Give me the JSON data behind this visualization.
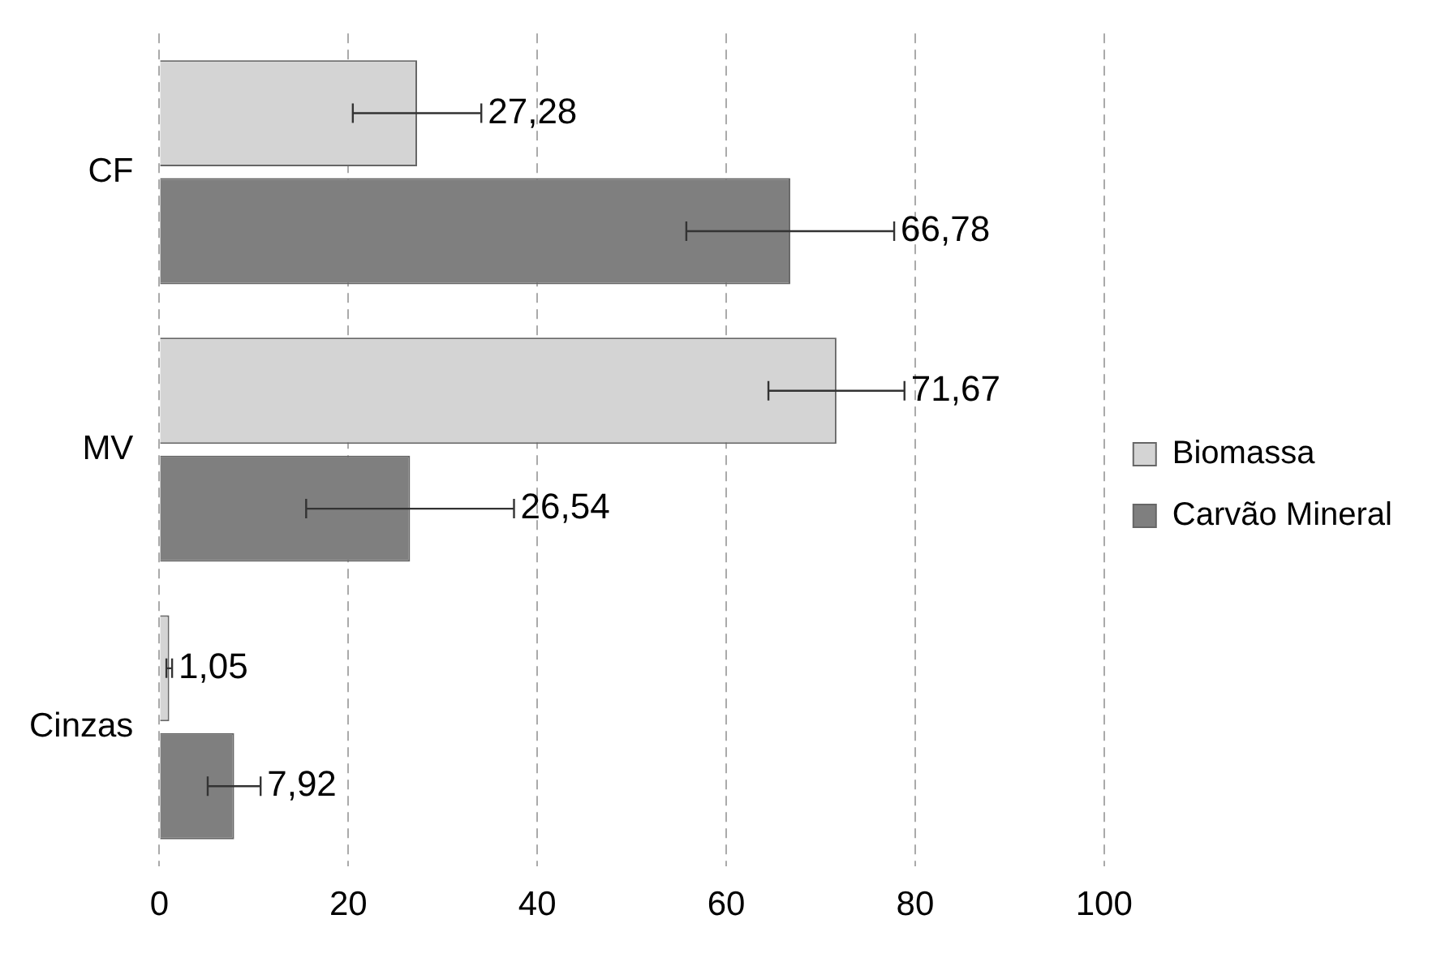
{
  "chart_data": {
    "type": "bar",
    "orientation": "horizontal",
    "categories": [
      "CF",
      "MV",
      "Cinzas"
    ],
    "series": [
      {
        "name": "Biomassa",
        "color": "#d4d4d4",
        "values": [
          27.28,
          71.67,
          1.05
        ],
        "errors": [
          6.8,
          7.2,
          0.3
        ],
        "value_labels": [
          "27,28",
          "71,67",
          "1,05"
        ]
      },
      {
        "name": "Carvão Mineral",
        "color": "#7f7f7f",
        "values": [
          66.78,
          26.54,
          7.92
        ],
        "errors": [
          11,
          11,
          2.8
        ],
        "value_labels": [
          "66,78",
          "26,54",
          "7,92"
        ]
      }
    ],
    "xlim": [
      0,
      100
    ],
    "xticks": [
      0,
      20,
      40,
      60,
      80,
      100
    ],
    "grid": "x",
    "legend": "right"
  }
}
